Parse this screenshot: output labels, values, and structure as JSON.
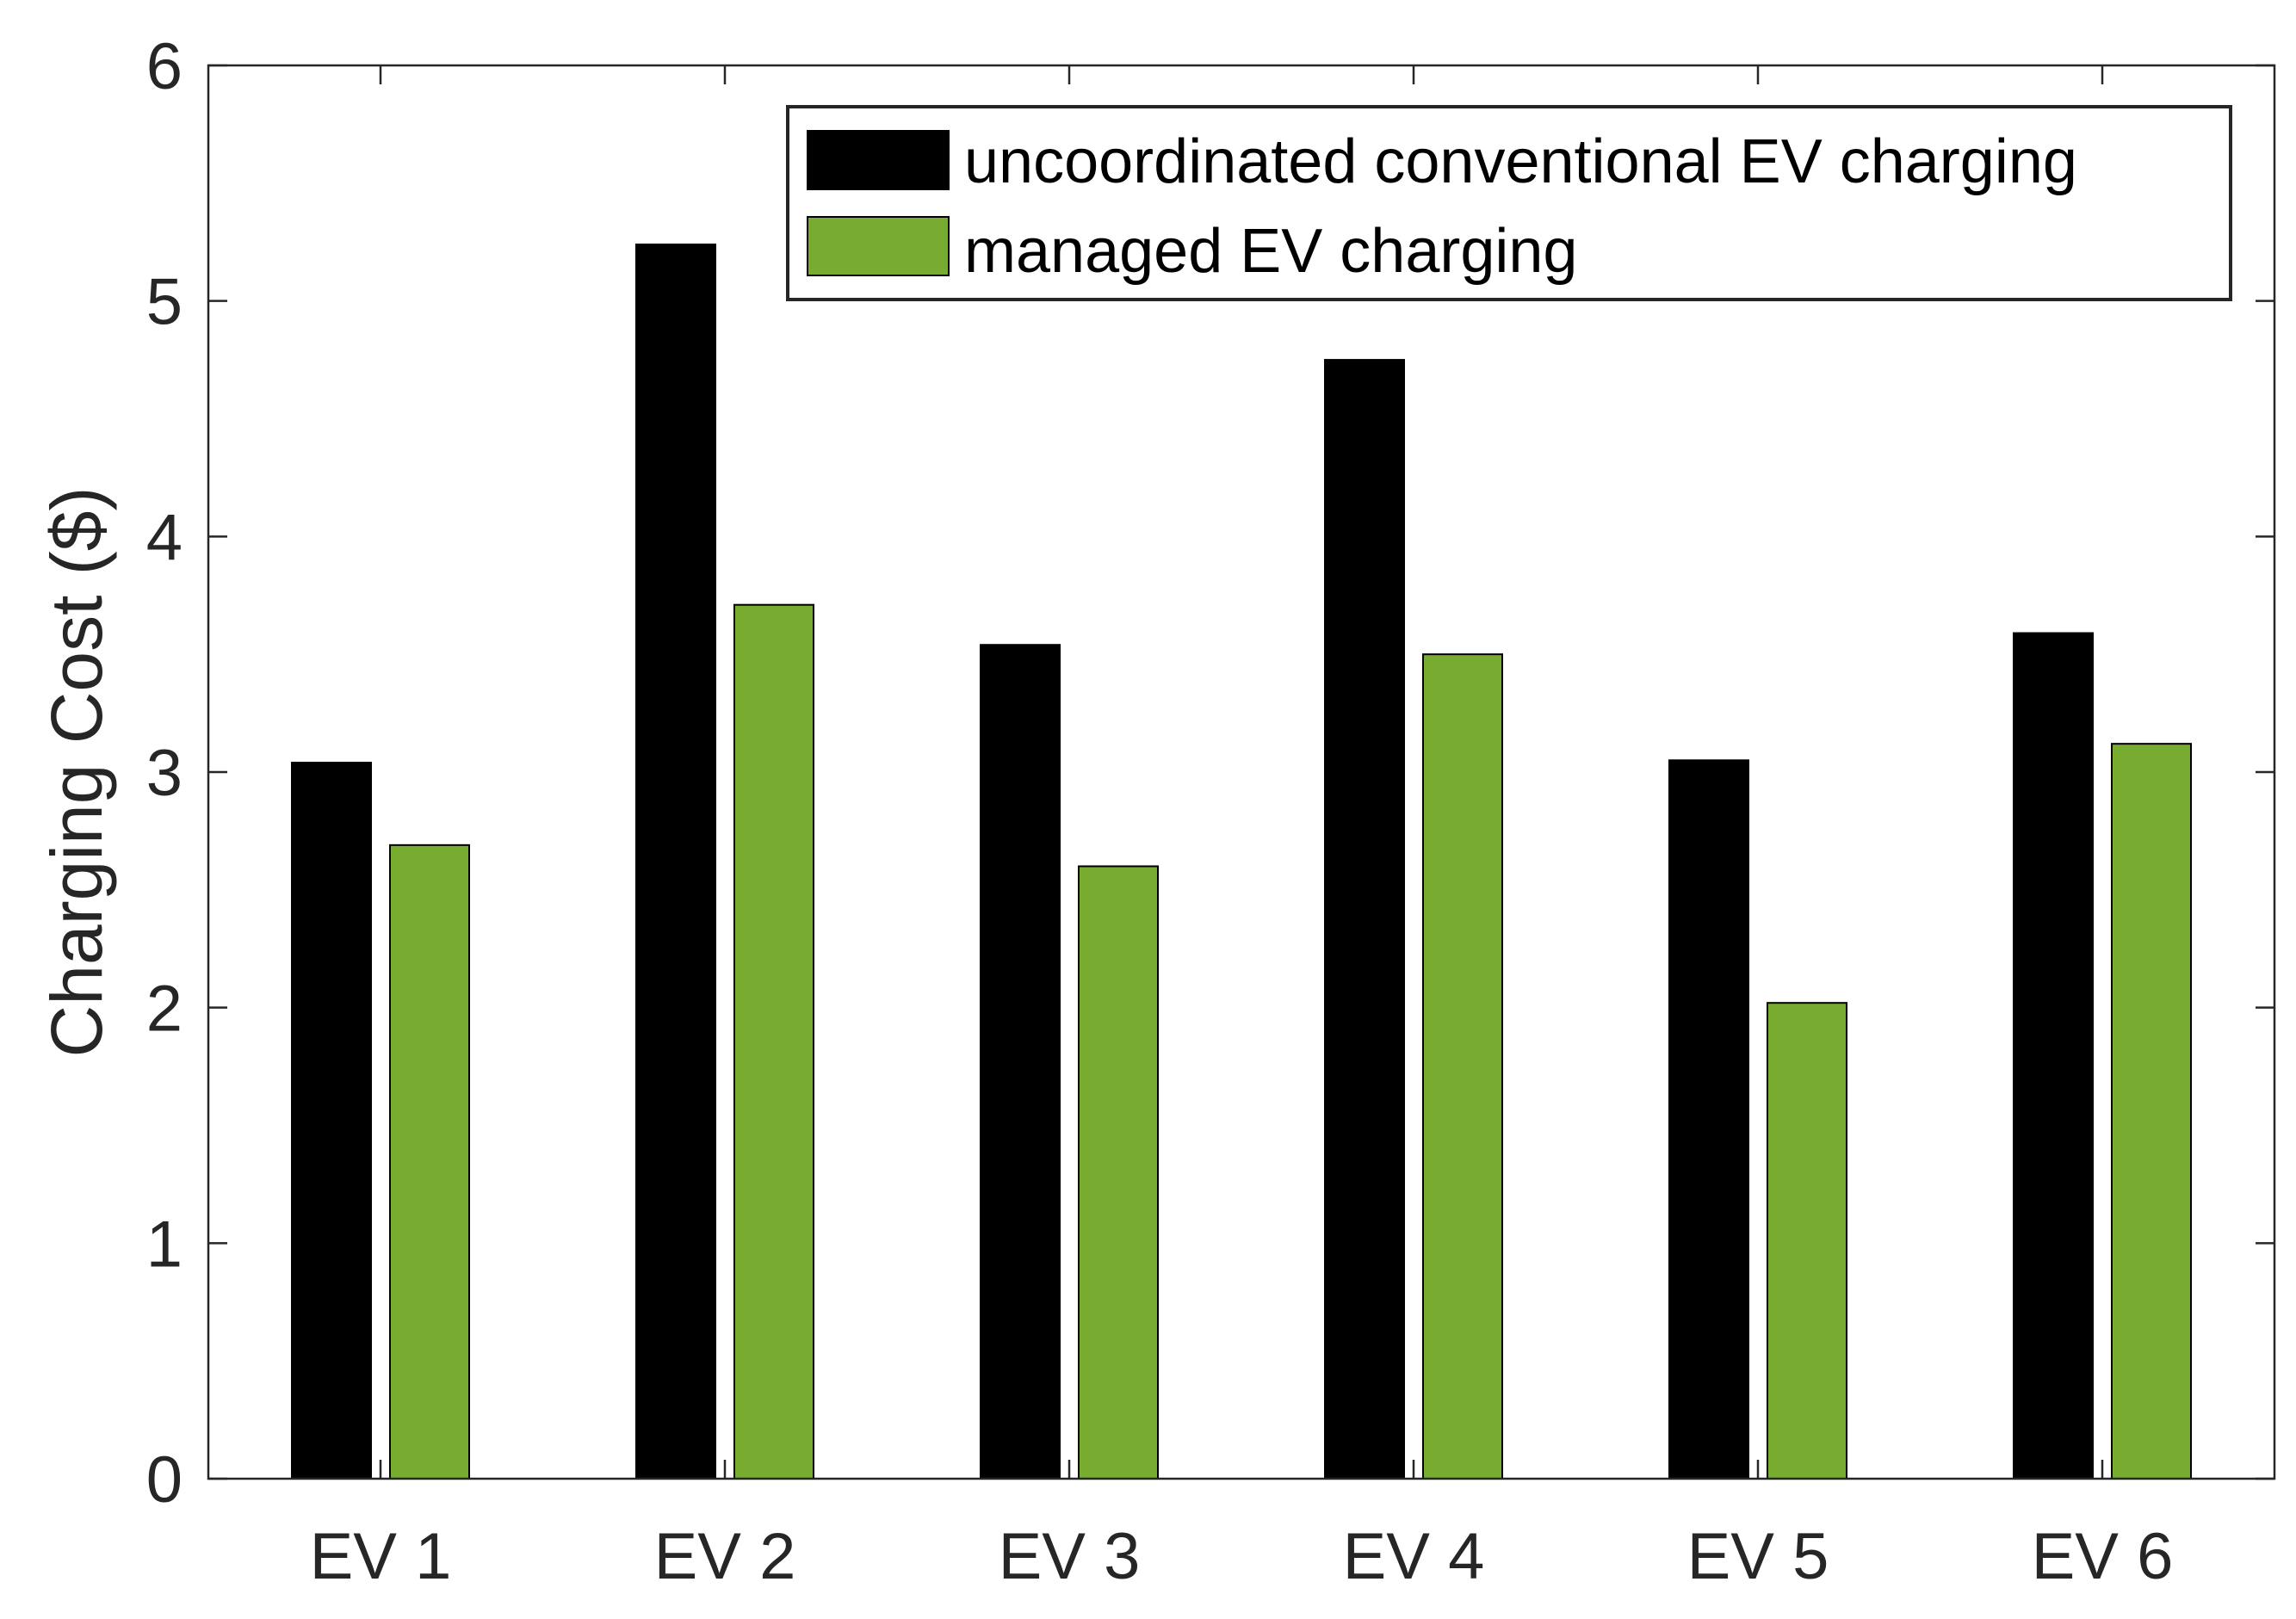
{
  "chart_data": {
    "type": "bar",
    "title": "",
    "xlabel": "",
    "ylabel": "Charging Cost ($)",
    "ylim": [
      0,
      6
    ],
    "yticks": [
      0,
      1,
      2,
      3,
      4,
      5,
      6
    ],
    "grid": false,
    "legend_position": "top-right",
    "categories": [
      "EV 1",
      "EV 2",
      "EV 3",
      "EV 4",
      "EV 5",
      "EV 6"
    ],
    "series": [
      {
        "name": "uncoordinated conventional EV charging",
        "color": "#000000",
        "values": [
          3.04,
          5.24,
          3.54,
          4.75,
          3.05,
          3.59
        ]
      },
      {
        "name": "managed EV charging",
        "color": "#77AC30",
        "values": [
          2.69,
          3.71,
          2.6,
          3.5,
          2.02,
          3.12
        ]
      }
    ]
  }
}
